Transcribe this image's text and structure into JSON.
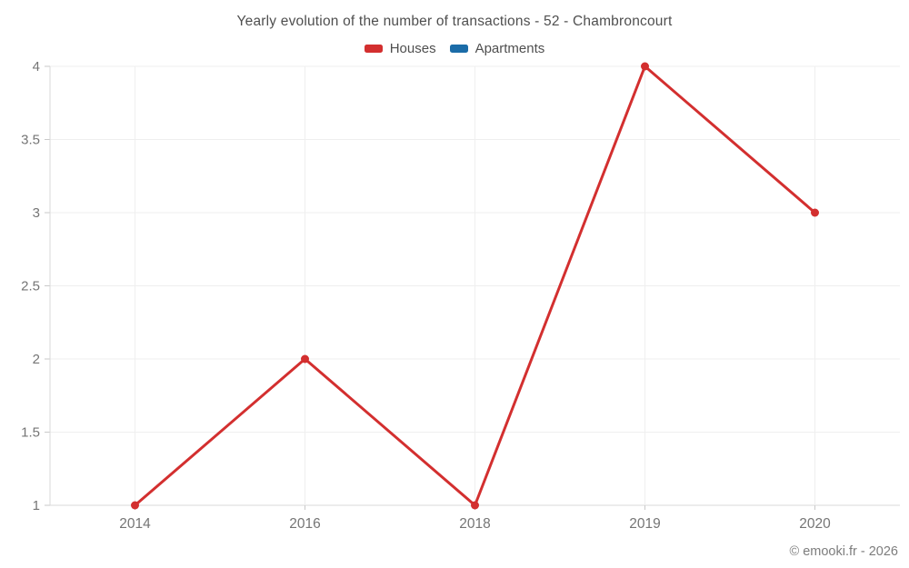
{
  "title": "Yearly evolution of the number of transactions - 52 - Chambroncourt",
  "legend": {
    "items": [
      {
        "label": "Houses",
        "color": "#d32f2f"
      },
      {
        "label": "Apartments",
        "color": "#1b6ca8"
      }
    ]
  },
  "footer": {
    "credit": "© emooki.fr - 2026"
  },
  "chart_data": {
    "type": "line",
    "title": "Yearly evolution of the number of transactions - 52 - Chambroncourt",
    "categories": [
      "2014",
      "2016",
      "2018",
      "2019",
      "2020"
    ],
    "series": [
      {
        "name": "Houses",
        "color": "#d32f2f",
        "values": [
          1,
          2,
          1,
          4,
          3
        ]
      },
      {
        "name": "Apartments",
        "color": "#1b6ca8",
        "values": []
      }
    ],
    "xlabel": "",
    "ylabel": "",
    "ylim": [
      1,
      4
    ],
    "yticks": [
      1,
      1.5,
      2,
      2.5,
      3,
      3.5,
      4
    ],
    "grid": true,
    "legend_position": "top"
  },
  "colors": {
    "background": "#ffffff",
    "grid": "#efefef",
    "axis": "#d9d9d9",
    "tick": "#c9c9c9",
    "tick_label": "#757575",
    "title_text": "#4f4f4f"
  }
}
